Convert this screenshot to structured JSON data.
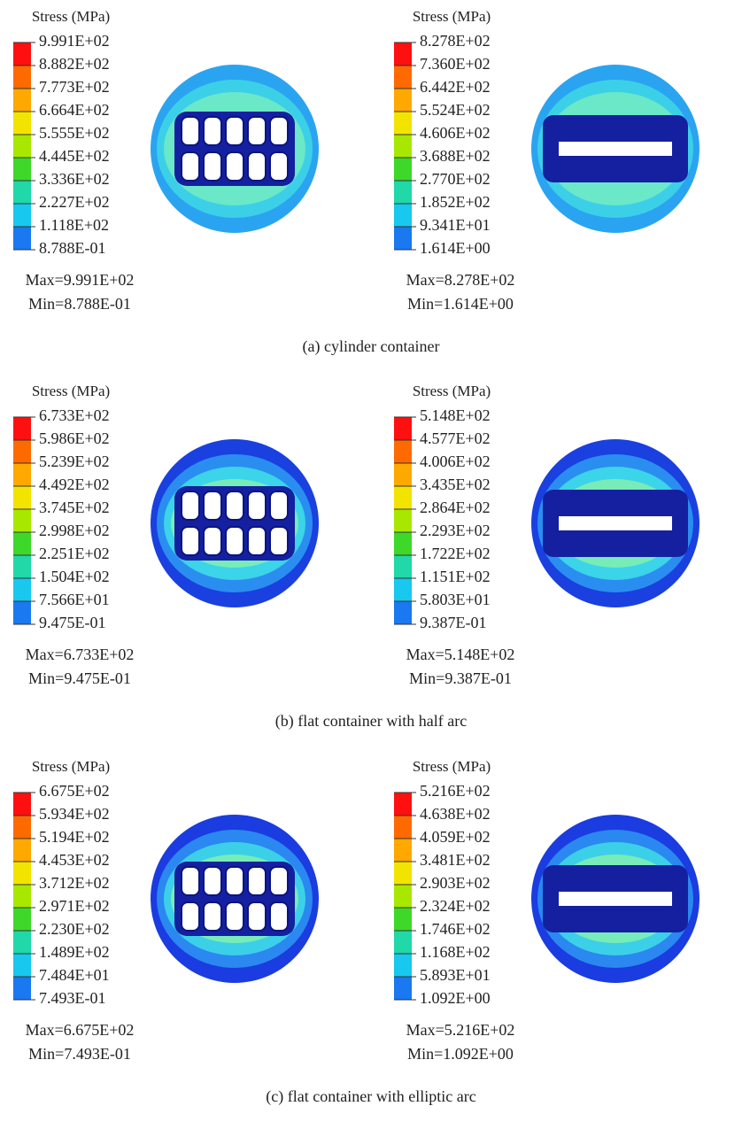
{
  "rows": [
    {
      "caption": "(a) cylinder container",
      "panels": [
        {
          "legend_title": "Stress (MPa)",
          "legend_labels": [
            "9.991E+02",
            "8.882E+02",
            "7.773E+02",
            "6.664E+02",
            "5.555E+02",
            "4.445E+02",
            "3.336E+02",
            "2.227E+02",
            "1.118E+02",
            "8.788E-01"
          ],
          "max_label": "Max=9.991E+02",
          "min_label": "Min=8.788E-01"
        },
        {
          "legend_title": "Stress (MPa)",
          "legend_labels": [
            "8.278E+02",
            "7.360E+02",
            "6.442E+02",
            "5.524E+02",
            "4.606E+02",
            "3.688E+02",
            "2.770E+02",
            "1.852E+02",
            "9.341E+01",
            "1.614E+00"
          ],
          "max_label": "Max=8.278E+02",
          "min_label": "Min=1.614E+00"
        }
      ]
    },
    {
      "caption": "(b) flat container with half arc",
      "panels": [
        {
          "legend_title": "Stress (MPa)",
          "legend_labels": [
            "6.733E+02",
            "5.986E+02",
            "5.239E+02",
            "4.492E+02",
            "3.745E+02",
            "2.998E+02",
            "2.251E+02",
            "1.504E+02",
            "7.566E+01",
            "9.475E-01"
          ],
          "max_label": "Max=6.733E+02",
          "min_label": "Min=9.475E-01"
        },
        {
          "legend_title": "Stress (MPa)",
          "legend_labels": [
            "5.148E+02",
            "4.577E+02",
            "4.006E+02",
            "3.435E+02",
            "2.864E+02",
            "2.293E+02",
            "1.722E+02",
            "1.151E+02",
            "5.803E+01",
            "9.387E-01"
          ],
          "max_label": "Max=5.148E+02",
          "min_label": "Min=9.387E-01"
        }
      ]
    },
    {
      "caption": "(c) flat container with elliptic arc",
      "panels": [
        {
          "legend_title": "Stress (MPa)",
          "legend_labels": [
            "6.675E+02",
            "5.934E+02",
            "5.194E+02",
            "4.453E+02",
            "3.712E+02",
            "2.971E+02",
            "2.230E+02",
            "1.489E+02",
            "7.484E+01",
            "7.493E-01"
          ],
          "max_label": "Max=6.675E+02",
          "min_label": "Min=7.493E-01"
        },
        {
          "legend_title": "Stress (MPa)",
          "legend_labels": [
            "5.216E+02",
            "4.638E+02",
            "4.059E+02",
            "3.481E+02",
            "2.903E+02",
            "2.324E+02",
            "1.746E+02",
            "1.168E+02",
            "5.893E+01",
            "1.092E+00"
          ],
          "max_label": "Max=5.216E+02",
          "min_label": "Min=1.092E+00"
        }
      ]
    }
  ]
}
